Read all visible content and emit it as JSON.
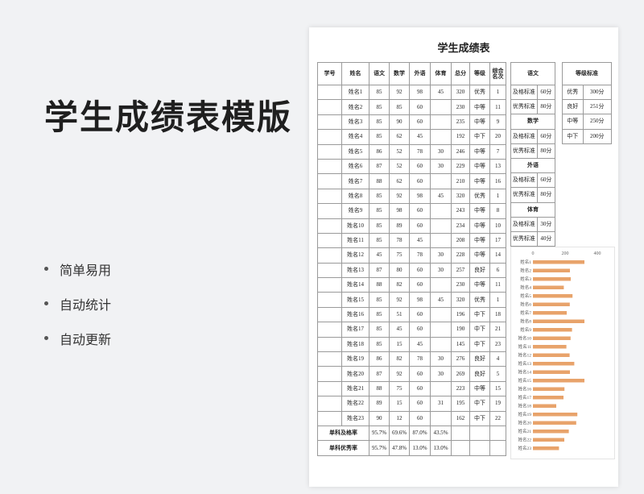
{
  "page": {
    "title": "学生成绩表模版",
    "features": [
      "简单易用",
      "自动统计",
      "自动更新"
    ]
  },
  "sheet": {
    "title": "学生成绩表",
    "headers": [
      "学号",
      "姓名",
      "语文",
      "数学",
      "外语",
      "体育",
      "总分",
      "等级",
      "综合名次"
    ],
    "rows": [
      [
        "",
        "姓名1",
        "85",
        "92",
        "98",
        "45",
        "320",
        "优秀",
        "1"
      ],
      [
        "",
        "姓名2",
        "85",
        "85",
        "60",
        "",
        "230",
        "中等",
        "11"
      ],
      [
        "",
        "姓名3",
        "85",
        "90",
        "60",
        "",
        "235",
        "中等",
        "9"
      ],
      [
        "",
        "姓名4",
        "85",
        "62",
        "45",
        "",
        "192",
        "中下",
        "20"
      ],
      [
        "",
        "姓名5",
        "86",
        "52",
        "78",
        "30",
        "246",
        "中等",
        "7"
      ],
      [
        "",
        "姓名6",
        "87",
        "52",
        "60",
        "30",
        "229",
        "中等",
        "13"
      ],
      [
        "",
        "姓名7",
        "88",
        "62",
        "60",
        "",
        "210",
        "中等",
        "16"
      ],
      [
        "",
        "姓名8",
        "85",
        "92",
        "98",
        "45",
        "320",
        "优秀",
        "1"
      ],
      [
        "",
        "姓名9",
        "85",
        "98",
        "60",
        "",
        "243",
        "中等",
        "8"
      ],
      [
        "",
        "姓名10",
        "85",
        "89",
        "60",
        "",
        "234",
        "中等",
        "10"
      ],
      [
        "",
        "姓名11",
        "85",
        "78",
        "45",
        "",
        "208",
        "中等",
        "17"
      ],
      [
        "",
        "姓名12",
        "45",
        "75",
        "78",
        "30",
        "228",
        "中等",
        "14"
      ],
      [
        "",
        "姓名13",
        "87",
        "80",
        "60",
        "30",
        "257",
        "良好",
        "6"
      ],
      [
        "",
        "姓名14",
        "88",
        "82",
        "60",
        "",
        "230",
        "中等",
        "11"
      ],
      [
        "",
        "姓名15",
        "85",
        "92",
        "98",
        "45",
        "320",
        "优秀",
        "1"
      ],
      [
        "",
        "姓名16",
        "85",
        "51",
        "60",
        "",
        "196",
        "中下",
        "18"
      ],
      [
        "",
        "姓名17",
        "85",
        "45",
        "60",
        "",
        "190",
        "中下",
        "21"
      ],
      [
        "",
        "姓名18",
        "85",
        "15",
        "45",
        "",
        "145",
        "中下",
        "23"
      ],
      [
        "",
        "姓名19",
        "86",
        "82",
        "78",
        "30",
        "276",
        "良好",
        "4"
      ],
      [
        "",
        "姓名20",
        "87",
        "92",
        "60",
        "30",
        "269",
        "良好",
        "5"
      ],
      [
        "",
        "姓名21",
        "88",
        "75",
        "60",
        "",
        "223",
        "中等",
        "15"
      ],
      [
        "",
        "姓名22",
        "89",
        "15",
        "60",
        "31",
        "195",
        "中下",
        "19"
      ],
      [
        "",
        "姓名23",
        "90",
        "12",
        "60",
        "",
        "162",
        "中下",
        "22"
      ]
    ],
    "pass_rate": {
      "label": "单科及格率",
      "values": [
        "95.7%",
        "69.6%",
        "87.0%",
        "43.5%"
      ]
    },
    "excellent_rate": {
      "label": "单科优秀率",
      "values": [
        "95.7%",
        "47.8%",
        "13.0%",
        "13.0%"
      ]
    }
  },
  "standards": {
    "title": "语文",
    "sections": [
      {
        "subject": "",
        "rows": [
          [
            "及格标准",
            "60分"
          ],
          [
            "优秀标准",
            "80分"
          ]
        ]
      },
      {
        "subject": "数学",
        "rows": [
          [
            "及格标准",
            "60分"
          ],
          [
            "优秀标准",
            "80分"
          ]
        ]
      },
      {
        "subject": "外语",
        "rows": [
          [
            "及格标准",
            "60分"
          ],
          [
            "优秀标准",
            "80分"
          ]
        ]
      },
      {
        "subject": "体育",
        "rows": [
          [
            "及格标准",
            "30分"
          ],
          [
            "优秀标准",
            "40分"
          ]
        ]
      }
    ]
  },
  "grade_standards": {
    "title": "等级标准",
    "rows": [
      [
        "优秀",
        "300分"
      ],
      [
        "良好",
        "251分"
      ],
      [
        "中等",
        "250分"
      ],
      [
        "中下",
        "200分"
      ]
    ]
  },
  "chart_data": {
    "type": "bar",
    "orientation": "horizontal",
    "categories": [
      "姓名1",
      "姓名2",
      "姓名3",
      "姓名4",
      "姓名5",
      "姓名6",
      "姓名7",
      "姓名8",
      "姓名9",
      "姓名10",
      "姓名11",
      "姓名12",
      "姓名13",
      "姓名14",
      "姓名15",
      "姓名16",
      "姓名17",
      "姓名18",
      "姓名19",
      "姓名20",
      "姓名21",
      "姓名22",
      "姓名23"
    ],
    "values": [
      320,
      230,
      235,
      192,
      246,
      229,
      210,
      320,
      243,
      234,
      208,
      228,
      257,
      230,
      320,
      196,
      190,
      145,
      276,
      269,
      223,
      195,
      162
    ],
    "xlim": [
      0,
      400
    ],
    "ticks": [
      "0",
      "200",
      "400"
    ],
    "bar_color": "#e8a36b",
    "grid": false
  }
}
